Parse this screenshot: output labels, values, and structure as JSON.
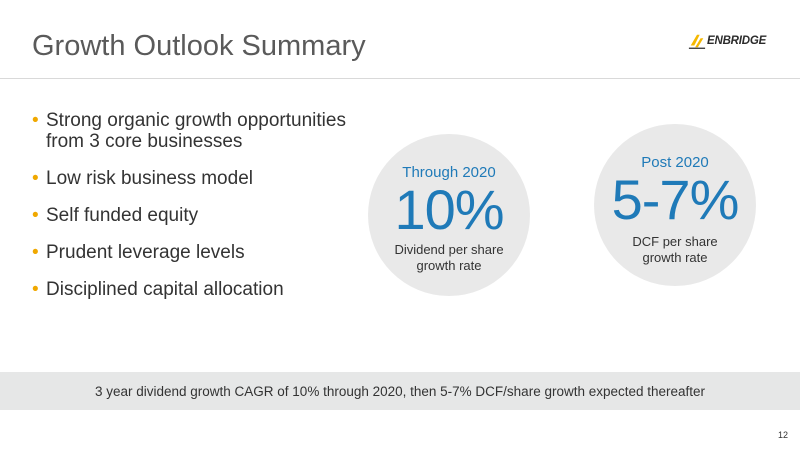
{
  "slide": {
    "title": "Growth Outlook Summary",
    "logo_text": "ENBRIDGE",
    "page_number": "12"
  },
  "bullets": [
    "Strong organic growth opportunities from 3 core businesses",
    "Low risk business model",
    "Self funded equity",
    "Prudent leverage levels",
    "Disciplined capital allocation"
  ],
  "circles": [
    {
      "label": "Through 2020",
      "value": "10%",
      "description_line1": "Dividend per share",
      "description_line2": "growth rate"
    },
    {
      "label": "Post 2020",
      "value": "5-7%",
      "description_line1": "DCF per share",
      "description_line2": "growth rate"
    }
  ],
  "banner_text": "3 year dividend growth CAGR of 10% through 2020, then 5-7% DCF/share growth expected thereafter",
  "colors": {
    "accent_blue": "#1f7ab8",
    "bullet_orange": "#f0a800",
    "logo_yellow": "#f5b800",
    "circle_gray": "#e9e9e9",
    "banner_gray": "#e6e7e7"
  }
}
